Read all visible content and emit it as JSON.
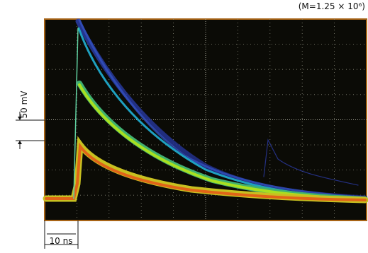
{
  "header": {
    "note": "(M=1.25 × 10⁶)"
  },
  "scale": {
    "vertical": "50 mV",
    "horizontal": "10 ns"
  }
}
